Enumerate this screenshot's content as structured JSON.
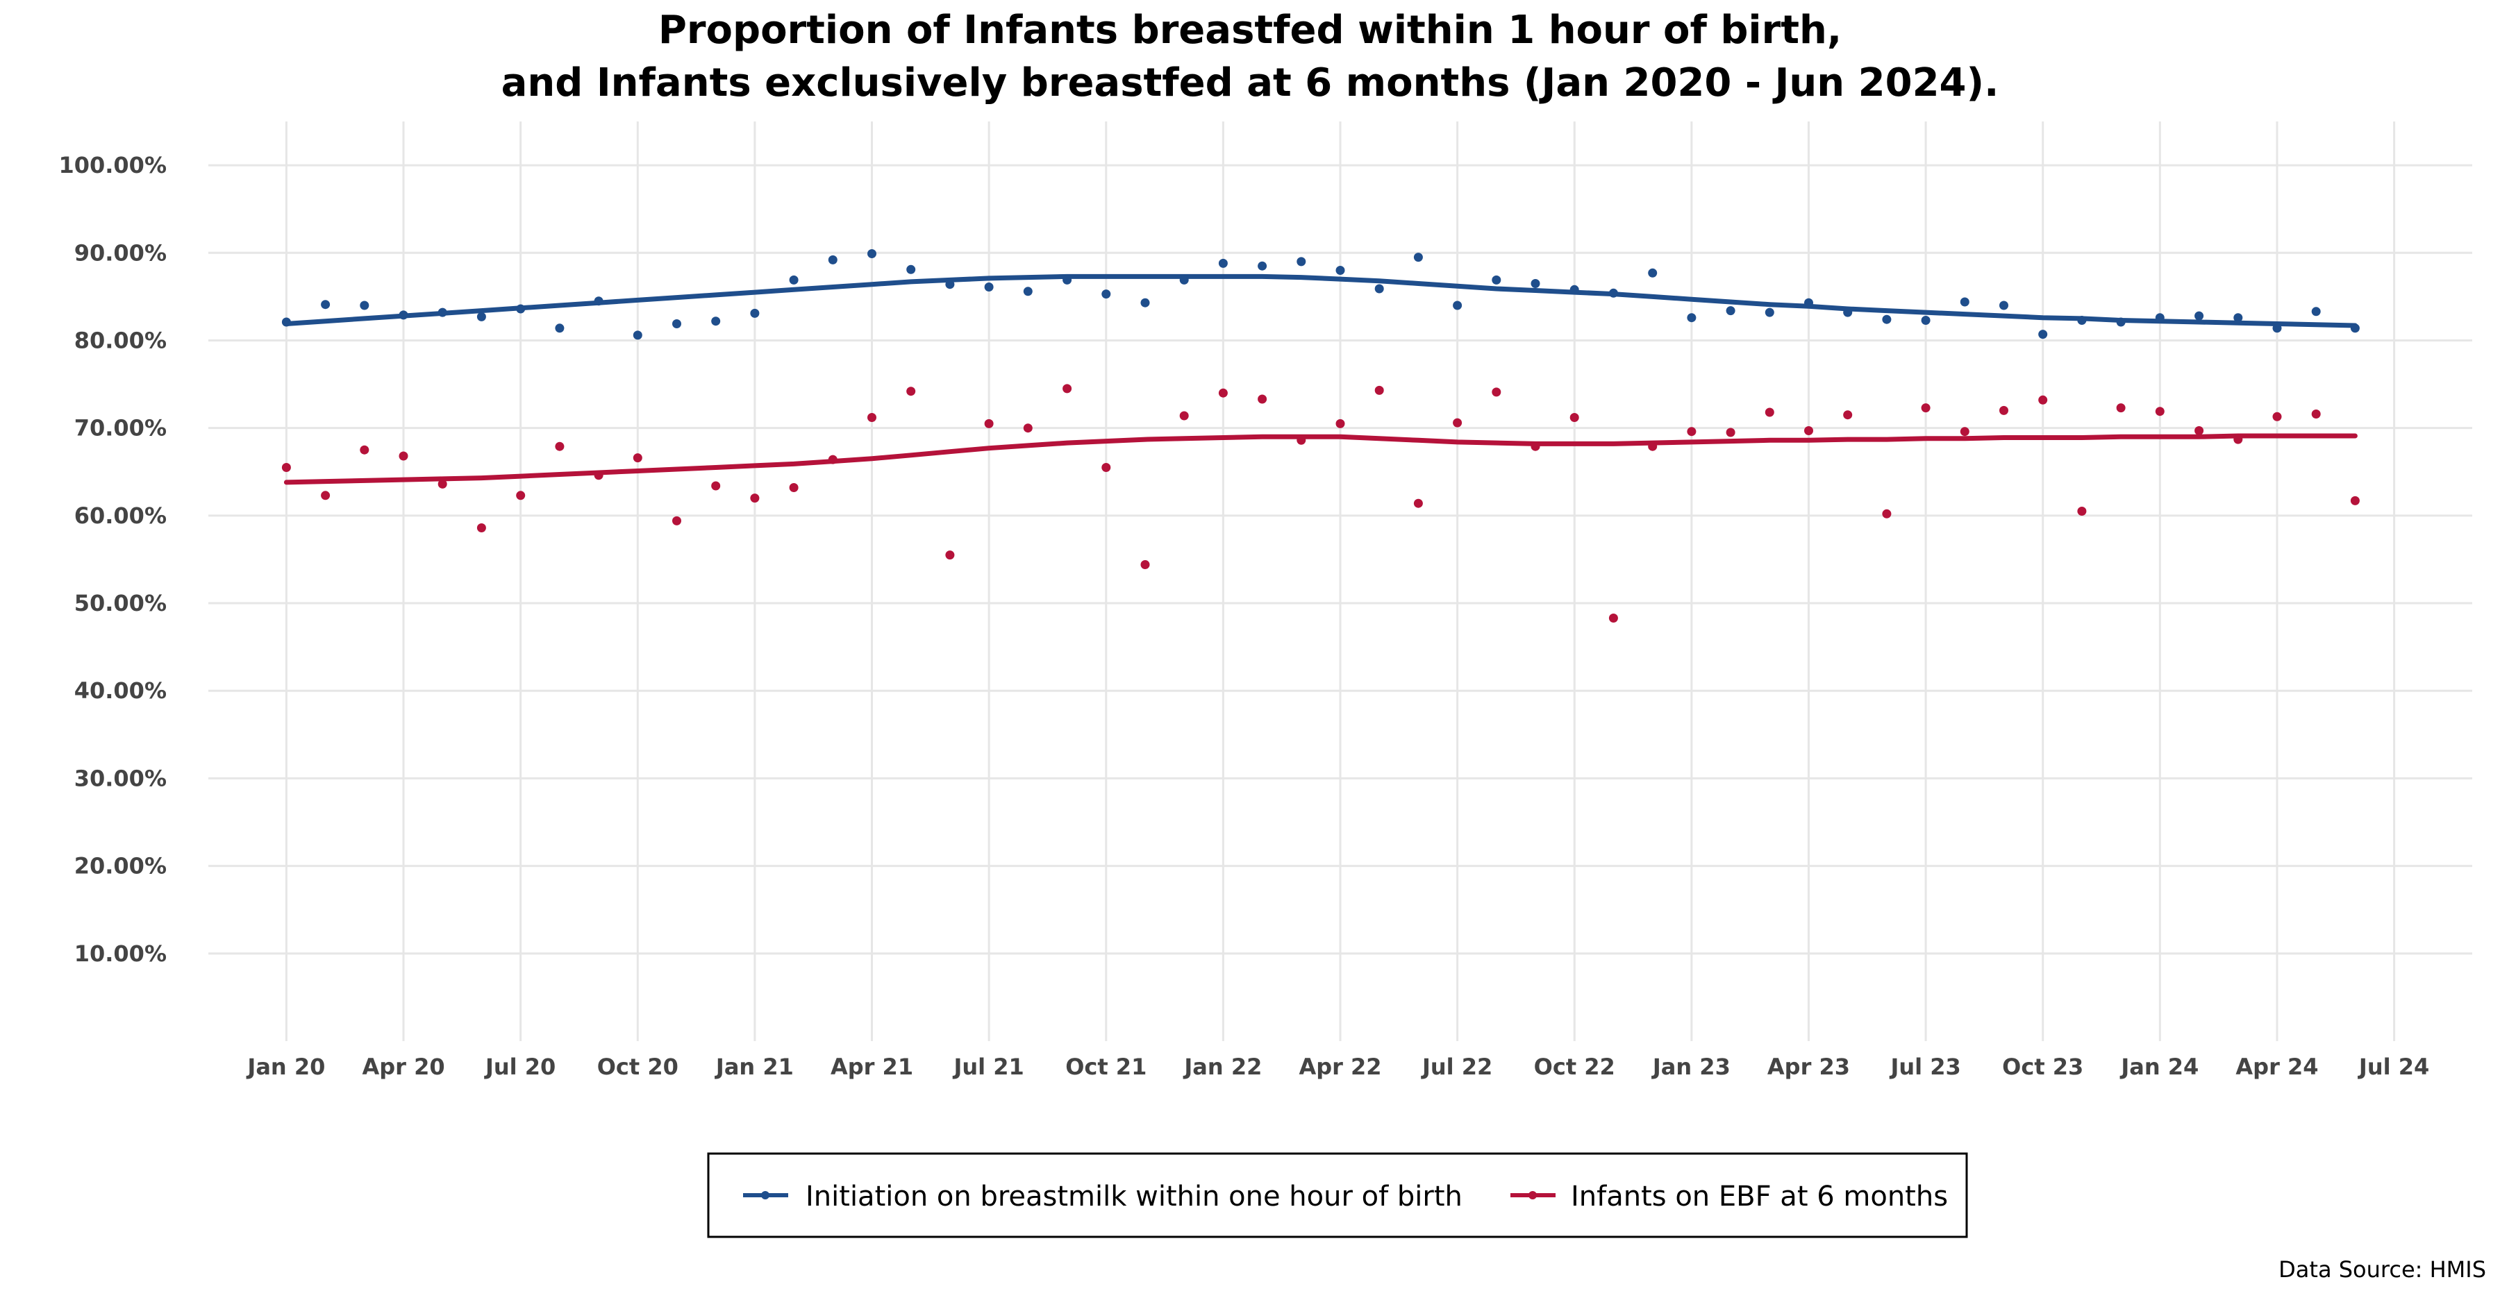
{
  "chart_data": {
    "type": "line",
    "title": [
      "Proportion of Infants breastfed within 1 hour of birth,",
      "and Infants exclusively breastfed at 6 months (Jan 2020 - Jun 2024)."
    ],
    "x_axis": {
      "ticks": [
        "Jan 20",
        "Apr 20",
        "Jul 20",
        "Oct 20",
        "Jan 21",
        "Apr 21",
        "Jul 21",
        "Oct 21",
        "Jan 22",
        "Apr 22",
        "Jul 22",
        "Oct 22",
        "Jan 23",
        "Apr 23",
        "Jul 23",
        "Oct 23",
        "Jan 24",
        "Apr 24",
        "Jul 24"
      ],
      "range": [
        "2019-11",
        "2024-09"
      ]
    },
    "y_axis": {
      "ticks": [
        "10.00%",
        "20.00%",
        "30.00%",
        "40.00%",
        "50.00%",
        "60.00%",
        "70.00%",
        "80.00%",
        "90.00%",
        "100.00%"
      ],
      "range": [
        0,
        105
      ]
    },
    "x": [
      "2020-01",
      "2020-02",
      "2020-03",
      "2020-04",
      "2020-05",
      "2020-06",
      "2020-07",
      "2020-08",
      "2020-09",
      "2020-10",
      "2020-11",
      "2020-12",
      "2021-01",
      "2021-02",
      "2021-03",
      "2021-04",
      "2021-05",
      "2021-06",
      "2021-07",
      "2021-08",
      "2021-09",
      "2021-10",
      "2021-11",
      "2021-12",
      "2022-01",
      "2022-02",
      "2022-03",
      "2022-04",
      "2022-05",
      "2022-06",
      "2022-07",
      "2022-08",
      "2022-09",
      "2022-10",
      "2022-11",
      "2022-12",
      "2023-01",
      "2023-02",
      "2023-03",
      "2023-04",
      "2023-05",
      "2023-06",
      "2023-07",
      "2023-08",
      "2023-09",
      "2023-10",
      "2023-11",
      "2023-12",
      "2024-01",
      "2024-02",
      "2024-03",
      "2024-04",
      "2024-05",
      "2024-06"
    ],
    "series": [
      {
        "name": "Initiation on breastmilk within one hour of birth",
        "color": "#1f4e8c",
        "values": [
          82.1,
          84.1,
          84.0,
          82.9,
          83.2,
          82.7,
          83.6,
          81.4,
          84.5,
          80.6,
          81.9,
          82.2,
          83.1,
          86.9,
          89.2,
          89.9,
          88.1,
          86.4,
          86.1,
          85.6,
          86.9,
          85.3,
          84.3,
          86.9,
          88.8,
          88.5,
          89.0,
          88.0,
          85.9,
          89.5,
          84.0,
          86.9,
          86.5,
          85.8,
          85.4,
          87.7,
          82.6,
          83.4,
          83.2,
          84.3,
          83.2,
          82.4,
          82.3,
          84.4,
          84.0,
          80.7,
          82.3,
          82.1,
          82.6,
          82.8,
          82.6,
          81.4,
          83.3,
          81.4
        ],
        "trend": [
          81.9,
          82.2,
          82.5,
          82.8,
          83.1,
          83.4,
          83.7,
          84.0,
          84.3,
          84.6,
          84.9,
          85.2,
          85.5,
          85.8,
          86.1,
          86.4,
          86.7,
          86.9,
          87.1,
          87.2,
          87.3,
          87.3,
          87.3,
          87.3,
          87.3,
          87.3,
          87.2,
          87.0,
          86.8,
          86.5,
          86.2,
          85.9,
          85.7,
          85.5,
          85.3,
          85.0,
          84.7,
          84.4,
          84.1,
          83.9,
          83.6,
          83.4,
          83.2,
          83.0,
          82.8,
          82.6,
          82.5,
          82.3,
          82.2,
          82.1,
          82.0,
          81.9,
          81.8,
          81.7
        ]
      },
      {
        "name": "Infants on EBF at 6 months",
        "color": "#b5123a",
        "values": [
          65.5,
          62.3,
          67.5,
          66.8,
          63.6,
          58.6,
          62.3,
          67.9,
          64.6,
          66.6,
          59.4,
          63.4,
          62.0,
          63.2,
          66.4,
          71.2,
          74.2,
          55.5,
          70.5,
          70.0,
          74.5,
          65.5,
          54.4,
          71.4,
          74.0,
          73.3,
          68.6,
          70.5,
          74.3,
          61.4,
          70.6,
          74.1,
          67.9,
          71.2,
          48.3,
          67.9,
          69.6,
          69.5,
          71.8,
          69.7,
          71.5,
          60.2,
          72.3,
          69.6,
          72.0,
          73.2,
          60.5,
          72.3,
          71.9,
          69.7,
          68.7,
          71.3,
          71.6,
          61.7
        ],
        "trend": [
          63.8,
          63.9,
          64.0,
          64.1,
          64.2,
          64.3,
          64.5,
          64.7,
          64.9,
          65.1,
          65.3,
          65.5,
          65.7,
          65.9,
          66.2,
          66.5,
          66.9,
          67.3,
          67.7,
          68.0,
          68.3,
          68.5,
          68.7,
          68.8,
          68.9,
          69.0,
          69.0,
          69.0,
          68.8,
          68.6,
          68.4,
          68.3,
          68.2,
          68.2,
          68.2,
          68.3,
          68.4,
          68.5,
          68.6,
          68.6,
          68.7,
          68.7,
          68.8,
          68.8,
          68.9,
          68.9,
          68.9,
          69.0,
          69.0,
          69.0,
          69.1,
          69.1,
          69.1,
          69.1
        ]
      }
    ],
    "legend": {
      "position": "bottom",
      "boxed": true
    },
    "grid": true,
    "source": "Data Source: HMIS"
  }
}
